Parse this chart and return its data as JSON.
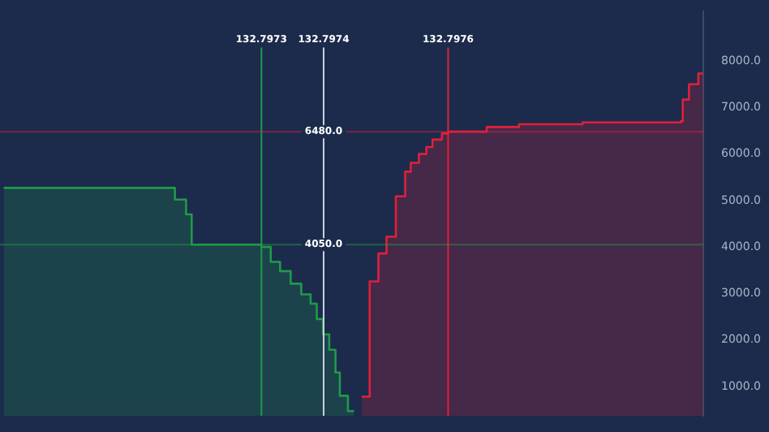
{
  "chart_data": {
    "type": "area",
    "tick_labels": "y",
    "grid": false,
    "legend": false,
    "marker": "none",
    "xlim": [
      132.79688,
      132.79801
    ],
    "ylim": [
      370,
      9060
    ],
    "yticks": [
      {
        "value": 1000,
        "label": "1000.0"
      },
      {
        "value": 2000,
        "label": "2000.0"
      },
      {
        "value": 3000,
        "label": "3000.0"
      },
      {
        "value": 4000,
        "label": "4000.0"
      },
      {
        "value": 5000,
        "label": "5000.0"
      },
      {
        "value": 6000,
        "label": "6000.0"
      },
      {
        "value": 7000,
        "label": "7000.0"
      },
      {
        "value": 8000,
        "label": "8000.0"
      }
    ],
    "series": [
      {
        "color": "#1f9a4a",
        "x": [
          132.796886,
          132.797161,
          132.797161,
          132.797179,
          132.797179,
          132.797188,
          132.797188,
          132.7973,
          132.7973,
          132.797315,
          132.797315,
          132.79733,
          132.79733,
          132.797347,
          132.797347,
          132.797364,
          132.797364,
          132.797379,
          132.797379,
          132.797389,
          132.797389,
          132.797399,
          132.797399,
          132.797409,
          132.797409,
          132.797419,
          132.797419,
          132.797426,
          132.797426,
          132.797439,
          132.797439,
          132.797449
        ],
        "values": [
          5270,
          5270,
          5020,
          5020,
          4700,
          4700,
          4050,
          4050,
          4000,
          4000,
          3680,
          3680,
          3480,
          3480,
          3210,
          3210,
          2980,
          2980,
          2780,
          2780,
          2450,
          2450,
          2120,
          2120,
          1790,
          1790,
          1300,
          1300,
          800,
          800,
          470,
          470
        ]
      },
      {
        "color": "#e0203a",
        "x": [
          132.797461,
          132.797474,
          132.797474,
          132.797488,
          132.797488,
          132.797501,
          132.797501,
          132.797516,
          132.797516,
          132.797531,
          132.797531,
          132.79754,
          132.79754,
          132.797553,
          132.797553,
          132.797565,
          132.797565,
          132.797575,
          132.797575,
          132.79759,
          132.79759,
          132.7976,
          132.7976,
          132.797662,
          132.797662,
          132.797714,
          132.797714,
          132.797816,
          132.797816,
          132.797974,
          132.797974,
          132.797977,
          132.797977,
          132.797987,
          132.797987,
          132.798002,
          132.798002,
          132.79801
        ],
        "values": [
          780,
          780,
          3260,
          3260,
          3860,
          3860,
          4220,
          4220,
          5090,
          5090,
          5620,
          5620,
          5810,
          5810,
          6000,
          6000,
          6150,
          6150,
          6310,
          6310,
          6440,
          6440,
          6480,
          6480,
          6580,
          6580,
          6640,
          6640,
          6680,
          6680,
          6710,
          6710,
          7170,
          7170,
          7500,
          7500,
          7730,
          7730
        ]
      }
    ],
    "ref_lines": [
      {
        "axis": "x",
        "value": 132.7973,
        "label": "132.7973",
        "color": "#1f9a4a"
      },
      {
        "axis": "x",
        "value": 132.7974,
        "label": "132.7974",
        "color": "#c8d0e0"
      },
      {
        "axis": "x",
        "value": 132.7976,
        "label": "132.7976",
        "color": "#e0203a"
      },
      {
        "axis": "y",
        "value": 4050,
        "label": "4050.0",
        "color": "#1f9a4a"
      },
      {
        "axis": "y",
        "value": 6480,
        "label": "6480.0",
        "color": "#e0203a"
      }
    ]
  }
}
